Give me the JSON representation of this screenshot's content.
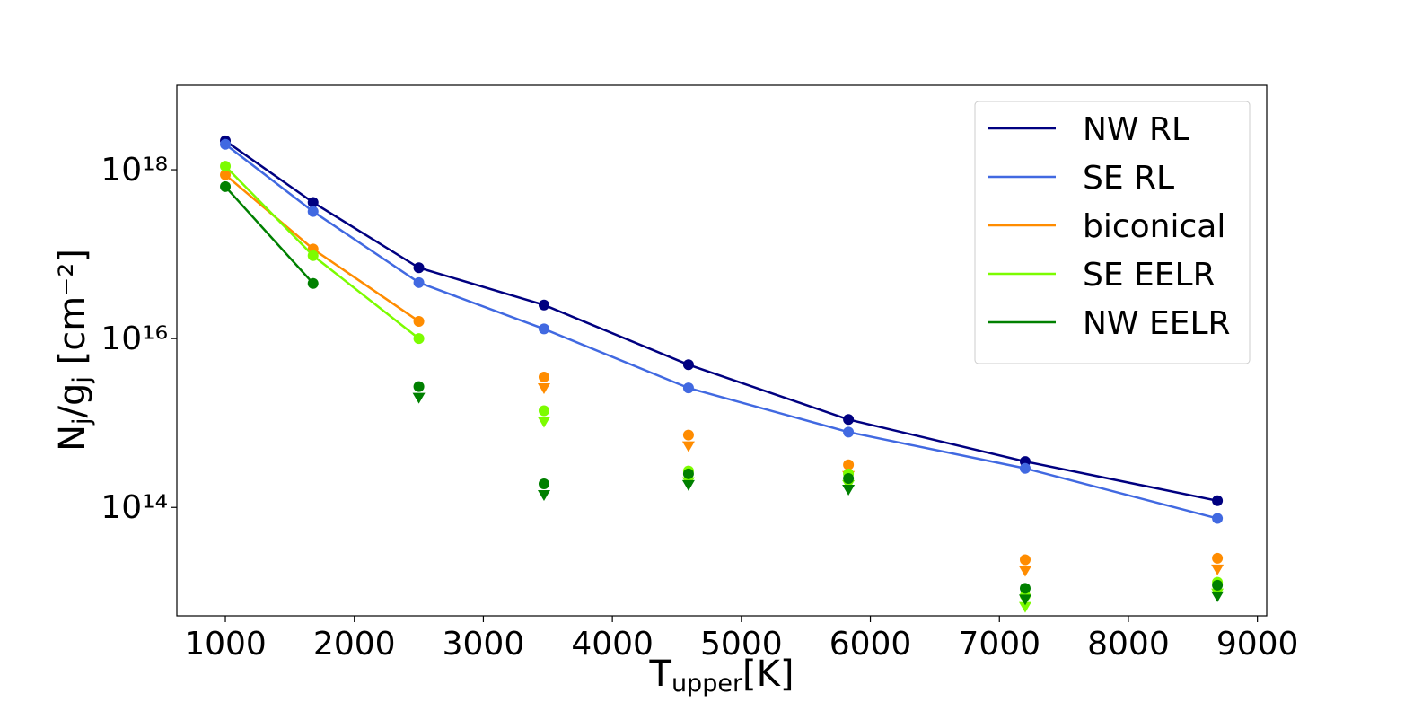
{
  "chart_data": {
    "type": "line",
    "xlabel": {
      "text": "T",
      "sub": "upper",
      "rest": "[K]"
    },
    "ylabel": {
      "parts": [
        "N",
        "j",
        "/g",
        "j",
        " [cm⁻²]"
      ]
    },
    "x": [
      1000,
      1680,
      2500,
      3470,
      4590,
      5830,
      7200,
      8690
    ],
    "xlim": [
      624,
      9072
    ],
    "xticks": [
      1000,
      2000,
      3000,
      4000,
      5000,
      6000,
      7000,
      8000,
      9000
    ],
    "ylim": [
      5200000000000.0,
      1e+19
    ],
    "log_y": true,
    "yticks": [
      {
        "value": 100000000000000.0,
        "label": "10¹⁴"
      },
      {
        "value": 1e+16,
        "label": "10¹⁶"
      },
      {
        "value": 1e+18,
        "label": "10¹⁸"
      }
    ],
    "legend": "upper right",
    "series": [
      {
        "name": "NW RL",
        "color": "#000080",
        "values": [
          2.2e+18,
          4.1e+17,
          6.9e+16,
          2.5e+16,
          4900000000000000.0,
          1100000000000000.0,
          350000000000000.0,
          120000000000000.0
        ]
      },
      {
        "name": "SE RL",
        "color": "#4169e1",
        "values": [
          2e+18,
          3.2e+17,
          4.6e+16,
          1.3e+16,
          2600000000000000.0,
          780000000000000.0,
          290000000000000.0,
          74000000000000.0
        ]
      },
      {
        "name": "biconical",
        "color": "#ff8c00",
        "values": [
          8.7e+17,
          1.15e+17,
          1.6e+16,
          null,
          null,
          null,
          null,
          null
        ],
        "upper_limits": [
          null,
          null,
          null,
          3500000000000000.0,
          720000000000000.0,
          320000000000000.0,
          24000000000000.0,
          25000000000000.0
        ]
      },
      {
        "name": "SE EELR",
        "color": "#7cfc00",
        "values": [
          1.1e+18,
          9.6e+16,
          1e+16,
          null,
          null,
          null,
          null,
          null
        ],
        "upper_limits": [
          null,
          null,
          null,
          1400000000000000.0,
          270000000000000.0,
          250000000000000.0,
          9000000000000.0,
          13000000000000.0
        ]
      },
      {
        "name": "NW EELR",
        "color": "#008000",
        "values": [
          6.3e+17,
          4.5e+16,
          null,
          null,
          null,
          null,
          null,
          null
        ],
        "upper_limits": [
          null,
          null,
          2700000000000000.0,
          190000000000000.0,
          250000000000000.0,
          220000000000000.0,
          11000000000000.0,
          12000000000000.0
        ]
      }
    ]
  }
}
